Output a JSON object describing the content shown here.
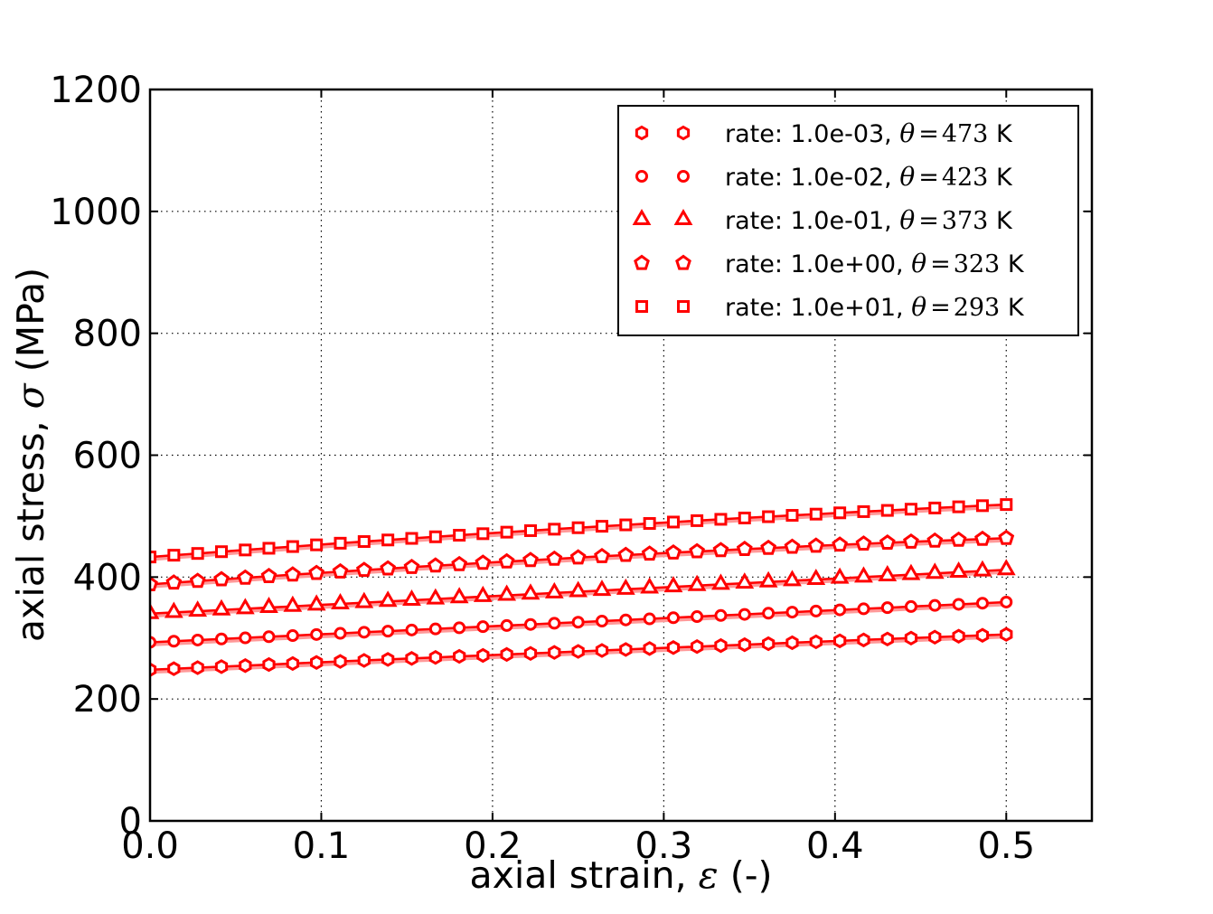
{
  "figure": {
    "background": "#ffffff"
  },
  "chart_data": {
    "type": "line",
    "title": "",
    "xlabel": {
      "prefix": "axial strain, ",
      "symbol": "ε",
      "suffix": " (-)"
    },
    "ylabel": {
      "prefix": "axial stress, ",
      "symbol": "σ",
      "suffix": " (MPa)"
    },
    "xlim": [
      0,
      0.55
    ],
    "ylim": [
      0,
      1200
    ],
    "xticks": {
      "values": [
        0,
        0.1,
        0.2,
        0.3,
        0.4,
        0.5
      ],
      "labels": [
        "0.0",
        "0.1",
        "0.2",
        "0.3",
        "0.4",
        "0.5"
      ]
    },
    "yticks": {
      "values": [
        0,
        200,
        400,
        600,
        800,
        1000,
        1200
      ],
      "labels": [
        "0",
        "200",
        "400",
        "600",
        "800",
        "1000",
        "1200"
      ]
    },
    "grid": {
      "visible": true,
      "style": "dotted",
      "color": "#000000"
    },
    "legend": {
      "position": "upper right",
      "numpoints": 2
    },
    "colors": {
      "series": "#ff0000",
      "series_shadow": "#ff9999",
      "axes": "#000000",
      "background": "#ffffff",
      "marker_face": "#ffffff"
    },
    "x": [
      0.0,
      0.0139,
      0.0278,
      0.0417,
      0.0556,
      0.0694,
      0.0833,
      0.0972,
      0.1111,
      0.125,
      0.1389,
      0.1528,
      0.1667,
      0.1806,
      0.1944,
      0.2083,
      0.2222,
      0.2361,
      0.25,
      0.2639,
      0.2778,
      0.2917,
      0.3056,
      0.3194,
      0.3333,
      0.3472,
      0.3611,
      0.375,
      0.3889,
      0.4028,
      0.4167,
      0.4306,
      0.4444,
      0.4583,
      0.4722,
      0.4861,
      0.5
    ],
    "series": [
      {
        "marker": "hexagon",
        "rate": "1.0e-03",
        "temperature_K": 473,
        "label": {
          "rate_text": "rate: 1.0e-03, ",
          "theta_symbol": "θ",
          "equals": "=",
          "temperature": "473",
          "unit": " K"
        },
        "values": [
          248.0,
          249.7,
          251.4,
          253.1,
          254.8,
          256.5,
          258.2,
          259.9,
          261.6,
          263.3,
          264.9,
          266.6,
          268.2,
          269.9,
          271.5,
          273.1,
          274.8,
          276.4,
          278.0,
          279.6,
          281.2,
          282.8,
          284.4,
          286.0,
          287.6,
          289.1,
          290.7,
          292.3,
          293.8,
          295.4,
          296.9,
          298.4,
          299.9,
          301.5,
          303.0,
          304.5,
          306.0
        ]
      },
      {
        "marker": "circle",
        "rate": "1.0e-02",
        "temperature_K": 423,
        "label": {
          "rate_text": "rate: 1.0e-02, ",
          "theta_symbol": "θ",
          "equals": "=",
          "temperature": "423",
          "unit": " K"
        },
        "values": [
          293.0,
          294.8,
          296.7,
          298.5,
          300.3,
          302.2,
          304.0,
          305.8,
          307.7,
          309.5,
          311.3,
          313.2,
          315.0,
          316.8,
          318.7,
          320.5,
          322.3,
          324.2,
          326.0,
          327.8,
          329.7,
          331.5,
          333.3,
          335.2,
          337.0,
          338.8,
          340.7,
          342.5,
          344.3,
          346.2,
          348.0,
          349.8,
          351.7,
          353.5,
          355.3,
          357.2,
          359.0
        ]
      },
      {
        "marker": "triangle",
        "rate": "1.0e-01",
        "temperature_K": 373,
        "label": {
          "rate_text": "rate: 1.0e-01, ",
          "theta_symbol": "θ",
          "equals": "=",
          "temperature": "373",
          "unit": " K"
        },
        "values": [
          340,
          342,
          344,
          346,
          348,
          350,
          352,
          354,
          356,
          358,
          360,
          362,
          364,
          366,
          368,
          370,
          372,
          374,
          376,
          378,
          380,
          382,
          384,
          386,
          388,
          390,
          392,
          394,
          396,
          398,
          400,
          402,
          404,
          406,
          408,
          410,
          412
        ]
      },
      {
        "marker": "pentagon",
        "rate": "1.0e+00",
        "temperature_K": 323,
        "label": {
          "rate_text": "rate: 1.0e+00, ",
          "theta_symbol": "θ",
          "equals": "=",
          "temperature": "323",
          "unit": " K"
        },
        "values": [
          388.0,
          390.8,
          393.5,
          396.2,
          398.8,
          401.4,
          404.0,
          406.5,
          409.0,
          411.5,
          413.9,
          416.3,
          418.7,
          421.0,
          423.3,
          425.5,
          427.7,
          429.9,
          432.0,
          434.1,
          436.1,
          438.2,
          440.1,
          442.1,
          444.0,
          445.9,
          447.7,
          449.5,
          451.3,
          453.0,
          454.7,
          456.3,
          457.9,
          459.5,
          461.0,
          462.5,
          464.0
        ]
      },
      {
        "marker": "square",
        "rate": "1.0e+01",
        "temperature_K": 293,
        "label": {
          "rate_text": "rate: 1.0e+01, ",
          "theta_symbol": "θ",
          "equals": "=",
          "temperature": "293",
          "unit": " K"
        },
        "values": [
          433.0,
          435.9,
          438.8,
          441.7,
          444.5,
          447.3,
          450.1,
          452.9,
          455.6,
          458.3,
          460.9,
          463.5,
          466.1,
          468.7,
          471.2,
          473.7,
          476.2,
          478.6,
          481.0,
          483.4,
          485.7,
          488.0,
          490.3,
          492.6,
          494.8,
          497.0,
          499.1,
          501.3,
          503.3,
          505.4,
          507.4,
          509.4,
          511.4,
          513.4,
          515.3,
          517.2,
          519.0
        ]
      }
    ]
  }
}
